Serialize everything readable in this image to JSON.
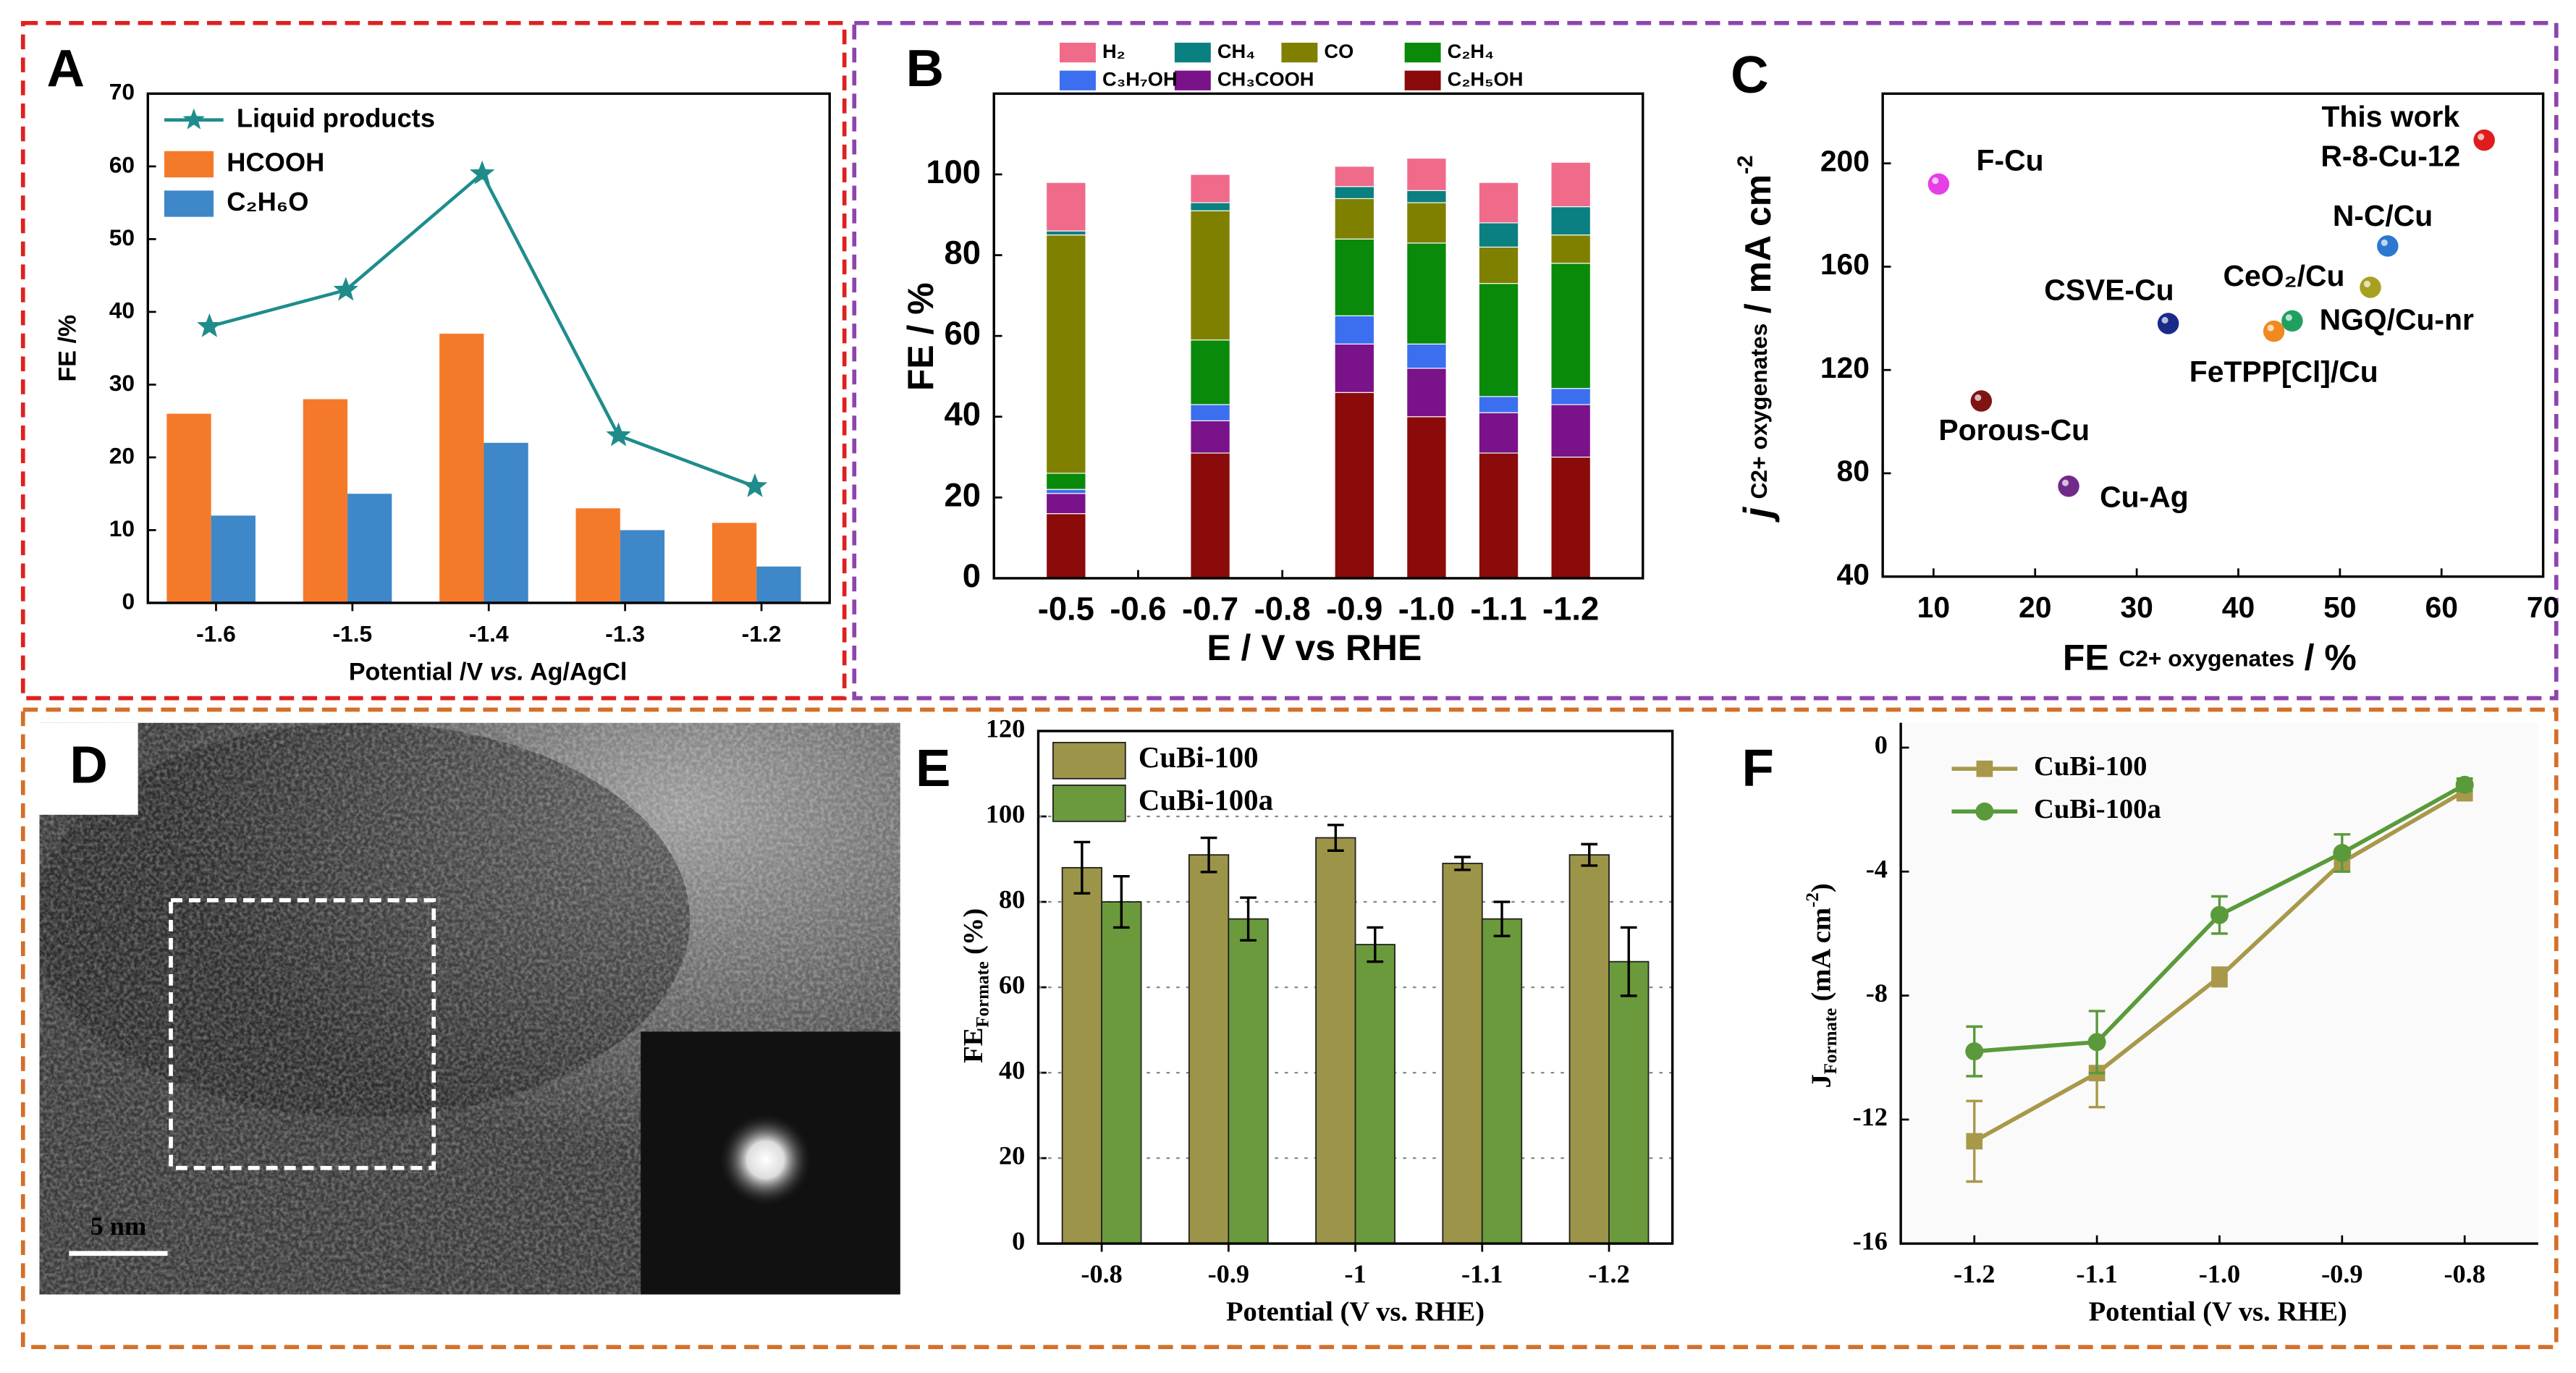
{
  "chart_data": [
    {
      "type": "bar",
      "label": "A",
      "xlabel": [
        "Potential /V ",
        "vs.",
        " Ag/AgCl"
      ],
      "ylabel": "FE /%",
      "categories": [
        "-1.6",
        "-1.5",
        "-1.4",
        "-1.3",
        "-1.2"
      ],
      "series": [
        {
          "name": "Liquid products",
          "type": "line",
          "color": "#1f8c8c",
          "values": [
            38,
            43,
            59,
            23,
            16
          ]
        },
        {
          "name": "HCOOH",
          "color": "#f47a2a",
          "values": [
            26,
            28,
            37,
            13,
            11
          ]
        },
        {
          "name": "C₂H₆O",
          "color": "#3e87c8",
          "values": [
            12,
            15,
            22,
            10,
            5
          ]
        }
      ],
      "ylim": [
        0,
        70
      ],
      "yticks": [
        0,
        10,
        20,
        30,
        40,
        50,
        60,
        70
      ]
    },
    {
      "type": "stacked_bar",
      "label": "B",
      "xlabel": "E / V vs RHE",
      "ylabel": "FE / %",
      "x": [
        -0.5,
        -0.7,
        -0.9,
        -1,
        -1.1,
        -1.2
      ],
      "series": [
        {
          "name": "C₂H₅OH",
          "color": "#8b0a0a",
          "values": [
            16,
            31,
            46,
            40,
            31,
            30
          ]
        },
        {
          "name": "CH₃COOH",
          "color": "#7a1289",
          "values": [
            5,
            8,
            12,
            12,
            10,
            13
          ]
        },
        {
          "name": "C₃H₇OH",
          "color": "#3b6ff0",
          "values": [
            1,
            4,
            7,
            6,
            4,
            4
          ]
        },
        {
          "name": "C₂H₄",
          "color": "#0a8a0a",
          "values": [
            4,
            16,
            19,
            25,
            28,
            31
          ]
        },
        {
          "name": "CO",
          "color": "#808000",
          "values": [
            59,
            32,
            10,
            10,
            9,
            7
          ]
        },
        {
          "name": "CH₄",
          "color": "#0a8080",
          "values": [
            1,
            2,
            3,
            3,
            6,
            7
          ]
        },
        {
          "name": "H₂",
          "color": "#f06a8a",
          "values": [
            12,
            7,
            5,
            8,
            10,
            11
          ]
        }
      ],
      "xlim": [
        -0.4,
        -1.3
      ],
      "xticks": [
        -0.5,
        -0.6,
        -0.7,
        -0.8,
        -0.9,
        {
          "value": -1,
          "label": "-1.0"
        },
        -1.1,
        -1.2
      ],
      "ylim": [
        0,
        120
      ],
      "yticks": [
        0,
        20,
        40,
        60,
        80,
        100
      ]
    },
    {
      "type": "scatter",
      "label": "C",
      "xlabel": [
        "FE",
        "C2+ oxygenates",
        "/ %"
      ],
      "ylabel": [
        "j",
        "C2+ oxygenates",
        "/ mA cm",
        "-2"
      ],
      "points": [
        {
          "label": "F-Cu",
          "x": 10.5,
          "y": 192,
          "color": "#e83ee8"
        },
        {
          "label": [
            "This work",
            "R-8-Cu-12"
          ],
          "x": 64.2,
          "y": 209,
          "color": "#e01c1c"
        },
        {
          "label": "N-C/Cu",
          "x": 54.7,
          "y": 168,
          "color": "#2a78d0"
        },
        {
          "label": "CSVE-Cu",
          "x": 33.1,
          "y": 138,
          "color": "#1a2a8a"
        },
        {
          "label": "CeO₂/Cu",
          "x": 45.3,
          "y": 139,
          "color": "#20a060"
        },
        {
          "label": "NGQ/Cu-nr",
          "x": 53,
          "y": 152,
          "color": "#a8a020"
        },
        {
          "label": "FeTPP[Cl]/Cu",
          "x": 43.5,
          "y": 135,
          "color": "#f08a20"
        },
        {
          "label": "Porous-Cu",
          "x": 14.7,
          "y": 108,
          "color": "#801414"
        },
        {
          "label": "Cu-Ag",
          "x": 23.3,
          "y": 75,
          "color": "#702a8a"
        }
      ],
      "xlim": [
        5,
        70
      ],
      "xticks": [
        10,
        20,
        30,
        40,
        50,
        60,
        70
      ],
      "ylim": [
        40,
        227
      ],
      "yticks": [
        40,
        80,
        120,
        160,
        200
      ]
    },
    {
      "type": "image",
      "label": "D",
      "scale_bar": "5 nm"
    },
    {
      "type": "bar",
      "label": "E",
      "xlabel": "Potential (V vs. RHE)",
      "ylabel": [
        "FE",
        "Formate",
        "(%)"
      ],
      "categories": [
        "-0.8",
        "-0.9",
        "-1",
        "-1.1",
        "-1.2"
      ],
      "series": [
        {
          "name": "CuBi-100",
          "color": "#9c9448",
          "values": [
            88,
            91,
            95,
            89,
            91
          ],
          "errors": [
            6,
            4,
            3,
            1.5,
            2.5
          ]
        },
        {
          "name": "CuBi-100a",
          "color": "#6a9a3c",
          "values": [
            80,
            76,
            70,
            76,
            66
          ],
          "errors": [
            6,
            5,
            4,
            4,
            8
          ]
        }
      ],
      "ylim": [
        0,
        120
      ],
      "yticks": [
        0,
        20,
        40,
        60,
        80,
        100,
        120
      ],
      "grid": true
    },
    {
      "type": "line",
      "label": "F",
      "xlabel": "Potential (V vs. RHE)",
      "ylabel": [
        "J",
        "Formate",
        "(mA cm",
        "-2",
        ")"
      ],
      "x": [
        -1.2,
        -1.1,
        -1,
        -0.9,
        -0.8
      ],
      "series": [
        {
          "name": "CuBi-100",
          "color": "#a8984a",
          "values": [
            -12.7,
            -10.5,
            -7.4,
            -3.7,
            -1.4
          ],
          "errors": [
            1.3,
            1.1,
            0.3,
            0.3,
            0.3
          ]
        },
        {
          "name": "CuBi-100a",
          "color": "#5a9a3a",
          "values": [
            -9.8,
            -9.5,
            -5.4,
            -3.4,
            -1.2
          ],
          "errors": [
            0.8,
            1,
            0.6,
            0.6,
            0.2
          ]
        }
      ],
      "xlim": [
        -1.26,
        -0.74
      ],
      "xticks": [
        -1.2,
        -1.1,
        {
          "value": -1,
          "label": "-1.0"
        },
        -0.9,
        -0.8
      ],
      "ylim": [
        -16,
        0.8
      ],
      "yticks": [
        0,
        -4,
        -8,
        -12,
        -16
      ]
    }
  ]
}
